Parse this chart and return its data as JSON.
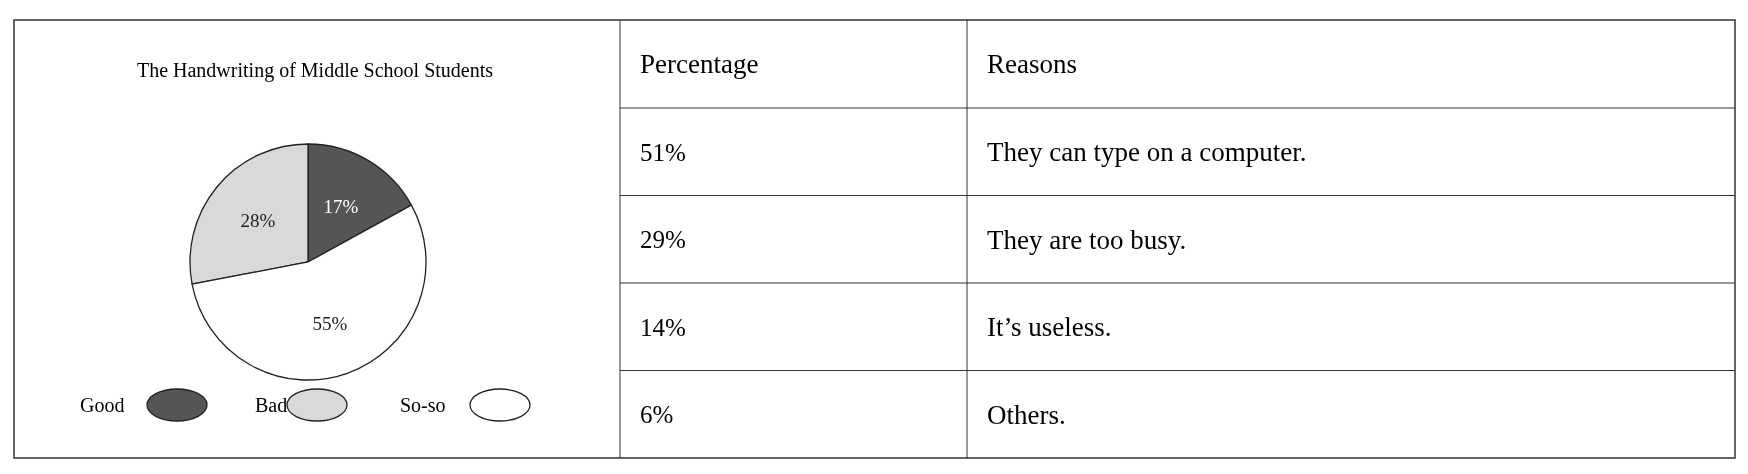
{
  "chart_data": [
    {
      "type": "pie",
      "title": "The Handwriting of Middle School Students",
      "categories": [
        "Good",
        "Bad",
        "So-so"
      ],
      "values": [
        17,
        28,
        55
      ],
      "value_labels": [
        "17%",
        "28%",
        "55%"
      ],
      "colors": [
        "#555555",
        "#d9d9d9",
        "#ffffff"
      ],
      "legend": "bottom"
    },
    {
      "type": "other",
      "xlabel": "Percentage",
      "ylabel": "Reasons",
      "categories": [
        "They can type on a computer.",
        "They are too busy.",
        "It’s useless.",
        "Others."
      ],
      "annotations": [
        "51%",
        "29%",
        "14%",
        "6%"
      ]
    }
  ]
}
